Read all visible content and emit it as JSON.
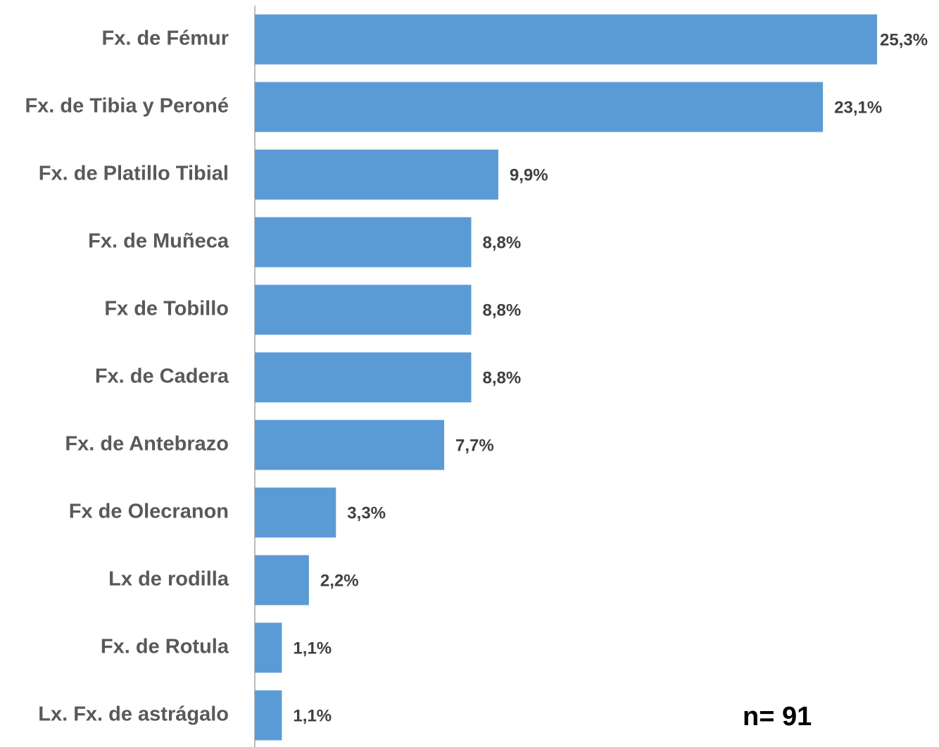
{
  "chart_data": {
    "type": "barh",
    "categories": [
      "Fx. de Fémur",
      "Fx. de Tibia y Peroné",
      "Fx. de Platillo Tibial",
      "Fx. de Muñeca",
      "Fx de Tobillo",
      "Fx. de Cadera",
      "Fx. de Antebrazo",
      "Fx de Olecranon",
      "Lx de rodilla",
      "Fx. de Rotula",
      "Lx. Fx. de astrágalo"
    ],
    "values": [
      25.3,
      23.1,
      9.9,
      8.8,
      8.8,
      8.8,
      7.7,
      3.3,
      2.2,
      1.1,
      1.1
    ],
    "value_labels": [
      "25,3%",
      "23,1%",
      "9,9%",
      "8,8%",
      "8,8%",
      "8,8%",
      "7,7%",
      "3,3%",
      "2,2%",
      "1,1%",
      "1,1%"
    ],
    "color": "#5b9bd5",
    "annotation": "n= 91"
  }
}
